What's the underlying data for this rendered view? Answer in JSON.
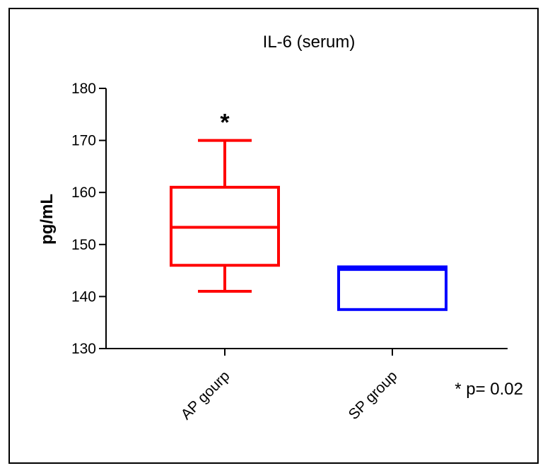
{
  "chart_data": {
    "type": "boxplot",
    "title": "IL-6 (serum)",
    "xlabel": "",
    "ylabel": "pg/mL",
    "ylim": [
      130,
      180
    ],
    "yticks": [
      130,
      140,
      150,
      160,
      170,
      180
    ],
    "categories": [
      "AP gourp",
      "SP group"
    ],
    "series": [
      {
        "category": "AP gourp",
        "min": 141,
        "q1": 146,
        "median": 153.3,
        "q3": 161,
        "max": 170,
        "color": "#ff0000",
        "annotation": "*"
      },
      {
        "category": "SP group",
        "min": 137.5,
        "q1": 137.5,
        "median": 145.2,
        "q3": 145.7,
        "max": 145.7,
        "color": "#0000ff"
      }
    ],
    "annotations": [
      "* p= 0.02"
    ],
    "grid": false
  }
}
